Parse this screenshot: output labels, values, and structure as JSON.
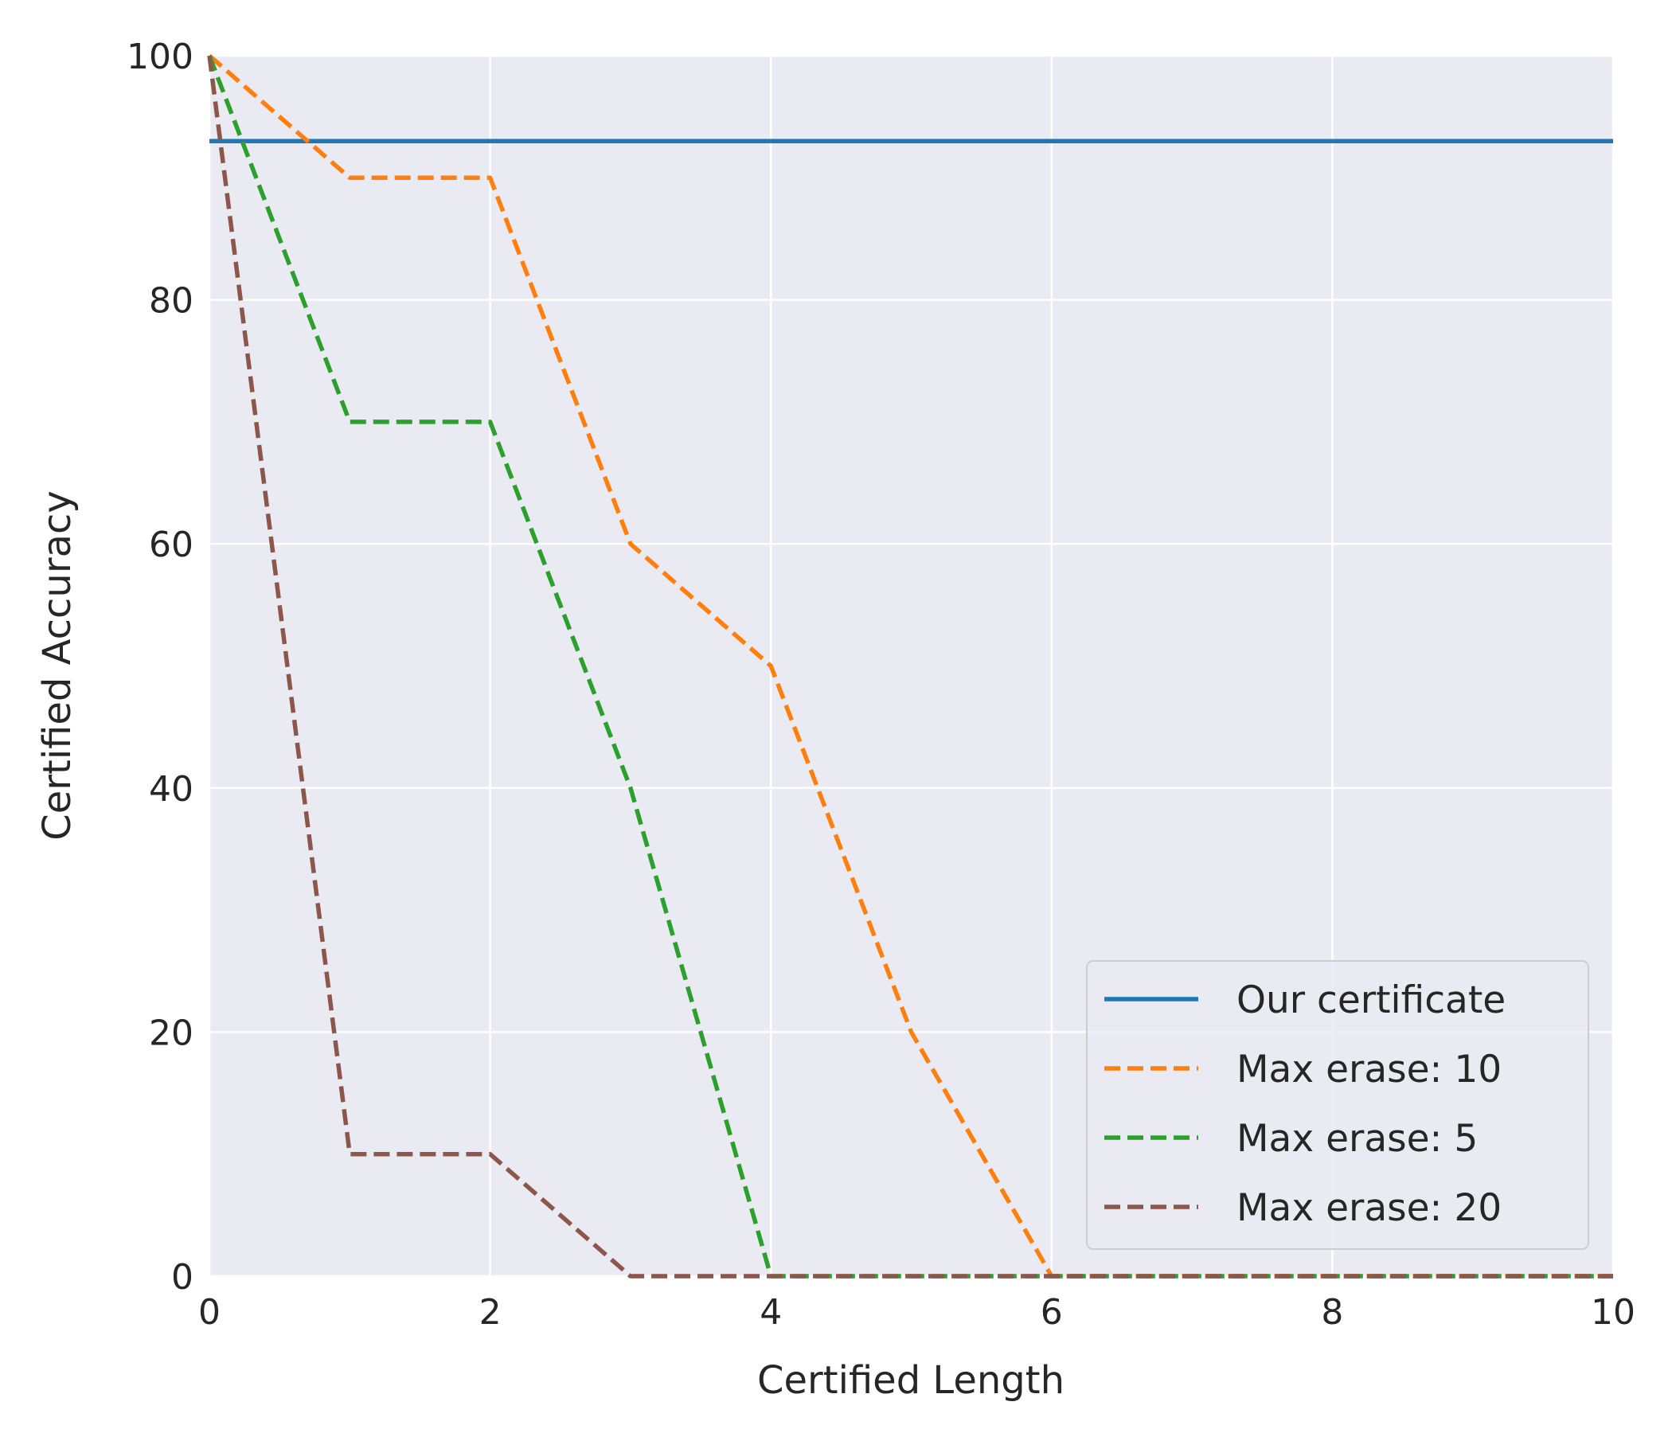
{
  "chart_data": {
    "type": "line",
    "title": "",
    "xlabel": "Certified Length",
    "ylabel": "Certified Accuracy",
    "xlim": [
      0,
      10
    ],
    "ylim": [
      0,
      100
    ],
    "xticks": [
      0,
      2,
      4,
      6,
      8,
      10
    ],
    "yticks": [
      0,
      20,
      40,
      60,
      80,
      100
    ],
    "grid": true,
    "background": "#eaeaf2",
    "legend_position": "bottom-right",
    "series": [
      {
        "name": "Our certificate",
        "color": "#1f77b4",
        "dash": "solid",
        "x": [
          0,
          10
        ],
        "y": [
          93,
          93
        ]
      },
      {
        "name": "Max erase: 10",
        "color": "#ff7f0e",
        "dash": "dashed",
        "x": [
          0,
          1,
          2,
          3,
          4,
          5,
          6,
          7,
          8,
          9,
          10
        ],
        "y": [
          100,
          90,
          90,
          60,
          50,
          20,
          0,
          0,
          0,
          0,
          0
        ]
      },
      {
        "name": "Max erase: 5",
        "color": "#2ca02c",
        "dash": "dashed",
        "x": [
          0,
          1,
          2,
          3,
          4,
          5,
          6,
          7,
          8,
          9,
          10
        ],
        "y": [
          100,
          70,
          70,
          40,
          0,
          0,
          0,
          0,
          0,
          0,
          0
        ]
      },
      {
        "name": "Max erase: 20",
        "color": "#8c564b",
        "dash": "dashed",
        "x": [
          0,
          1,
          2,
          3,
          4,
          5,
          6,
          7,
          8,
          9,
          10
        ],
        "y": [
          100,
          10,
          10,
          0,
          0,
          0,
          0,
          0,
          0,
          0,
          0
        ]
      }
    ]
  }
}
